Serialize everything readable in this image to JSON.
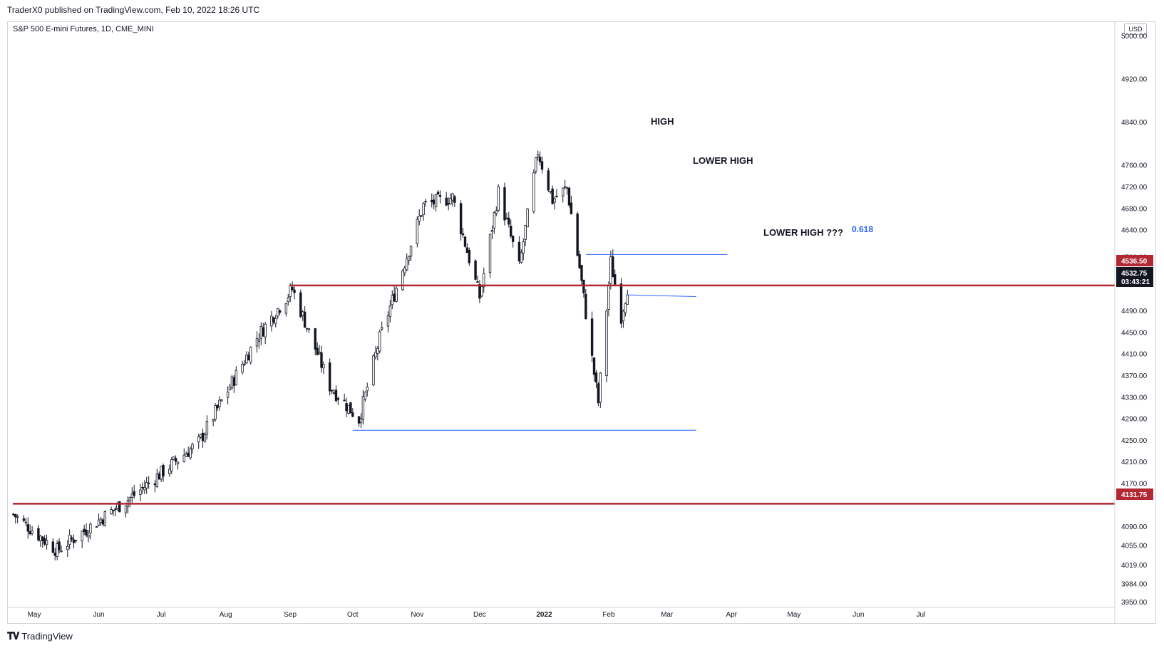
{
  "header": {
    "publisher": "TraderX0 published on TradingView.com, Feb 10, 2022 18:26 UTC"
  },
  "symbol": {
    "title": "S&P 500 E-mini Futures, 1D, CME_MINI",
    "currency": "USD"
  },
  "footer": {
    "brand": "TradingView",
    "logo": "TV-logo-icon"
  },
  "colors": {
    "candle": "#131722",
    "support_line": "#b22833",
    "trend_line": "#2962ff",
    "price_tag": "#b22833",
    "current_tag": "#131722"
  },
  "annotations": {
    "high": "HIGH",
    "lower_high": "LOWER HIGH",
    "lower_high_q": "LOWER HIGH ???",
    "fib": "0.618"
  },
  "price_tags": {
    "upper_level": "4536.50",
    "current_price": "4532.75",
    "countdown": "03:43:21",
    "lower_level": "4131.75"
  },
  "chart_data": {
    "type": "candlestick",
    "title": "S&P 500 E-mini Futures, 1D, CME_MINI",
    "y_ticks": [
      "5000.00",
      "4920.00",
      "4840.00",
      "4760.00",
      "4720.00",
      "4680.00",
      "4640.00",
      "4590.00",
      "4536.50",
      "4490.00",
      "4450.00",
      "4410.00",
      "4370.00",
      "4330.00",
      "4290.00",
      "4250.00",
      "4210.00",
      "4170.00",
      "4131.75",
      "4090.00",
      "4055.00",
      "4019.00",
      "3984.00",
      "3950.00"
    ],
    "x_ticks": [
      "May",
      "Jun",
      "Jul",
      "Aug",
      "Sep",
      "Oct",
      "Nov",
      "Dec",
      "2022",
      "Feb",
      "Mar",
      "Apr",
      "May",
      "Jun",
      "Jul"
    ],
    "horizontal_levels": [
      4536.5,
      4131.75
    ],
    "support_lines": [
      {
        "from": "2021-10-01",
        "to": "2022-03-15",
        "price": 4268
      },
      {
        "from": "2022-02-10",
        "to": "2022-03-15",
        "price_start": 4519,
        "price_end": 4516
      }
    ],
    "fib_level": {
      "label": "0.618",
      "price": 4594,
      "from": "2022-01-21",
      "to": "2022-03-30"
    },
    "anchors": [
      {
        "date": "2021-04-21",
        "close": 4112
      },
      {
        "date": "2021-05-12",
        "close": 4045
      },
      {
        "date": "2021-06-18",
        "close": 4148
      },
      {
        "date": "2021-07-19",
        "close": 4245
      },
      {
        "date": "2021-08-16",
        "close": 4440
      },
      {
        "date": "2021-09-02",
        "close": 4530
      },
      {
        "date": "2021-09-20",
        "close": 4350
      },
      {
        "date": "2021-10-04",
        "close": 4288
      },
      {
        "date": "2021-10-14",
        "close": 4438
      },
      {
        "date": "2021-11-04",
        "close": 4685
      },
      {
        "date": "2021-11-18",
        "close": 4700
      },
      {
        "date": "2021-12-01",
        "close": 4515
      },
      {
        "date": "2021-12-10",
        "close": 4710
      },
      {
        "date": "2021-12-20",
        "close": 4570
      },
      {
        "date": "2021-12-29",
        "close": 4785
      },
      {
        "date": "2022-01-05",
        "close": 4695
      },
      {
        "date": "2022-01-12",
        "close": 4718
      },
      {
        "date": "2022-01-18",
        "close": 4570
      },
      {
        "date": "2022-01-24",
        "close": 4400
      },
      {
        "date": "2022-01-27",
        "close": 4320
      },
      {
        "date": "2022-02-02",
        "close": 4580
      },
      {
        "date": "2022-02-07",
        "close": 4480
      },
      {
        "date": "2022-02-10",
        "close": 4532.75
      }
    ]
  }
}
